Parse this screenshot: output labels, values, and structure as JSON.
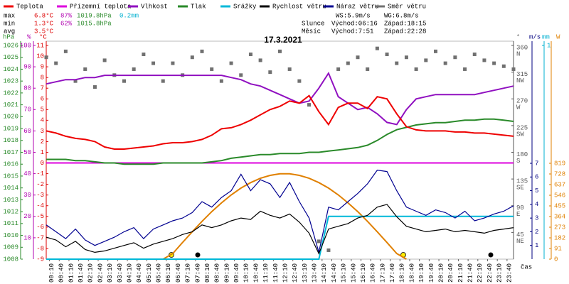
{
  "chart_data": {
    "type": "line",
    "title": "17.3.2021",
    "xlabel": "čas",
    "xlim": [
      0,
      1440
    ],
    "x": [
      0,
      30,
      60,
      90,
      120,
      150,
      180,
      210,
      240,
      270,
      300,
      330,
      360,
      390,
      420,
      450,
      480,
      510,
      540,
      570,
      600,
      630,
      660,
      690,
      720,
      750,
      780,
      810,
      840,
      870,
      900,
      930,
      960,
      990,
      1020,
      1050,
      1080,
      1110,
      1140,
      1170,
      1200,
      1230,
      1260,
      1290,
      1320,
      1350,
      1380,
      1410,
      1440
    ],
    "xticks": [
      {
        "value": 10,
        "label": "00:10"
      },
      {
        "value": 40,
        "label": "00:40"
      },
      {
        "value": 70,
        "label": "01:10"
      },
      {
        "value": 100,
        "label": "01:40"
      },
      {
        "value": 130,
        "label": "02:10"
      },
      {
        "value": 160,
        "label": "02:40"
      },
      {
        "value": 190,
        "label": "03:10"
      },
      {
        "value": 220,
        "label": "03:40"
      },
      {
        "value": 250,
        "label": "04:10"
      },
      {
        "value": 280,
        "label": "04:40"
      },
      {
        "value": 310,
        "label": "05:10"
      },
      {
        "value": 340,
        "label": "05:40"
      },
      {
        "value": 370,
        "label": "06:10"
      },
      {
        "value": 400,
        "label": "06:40"
      },
      {
        "value": 430,
        "label": "07:10"
      },
      {
        "value": 460,
        "label": "07:40"
      },
      {
        "value": 490,
        "label": "08:10"
      },
      {
        "value": 520,
        "label": "08:40"
      },
      {
        "value": 550,
        "label": "09:10"
      },
      {
        "value": 580,
        "label": "09:40"
      },
      {
        "value": 610,
        "label": "10:10"
      },
      {
        "value": 640,
        "label": "10:40"
      },
      {
        "value": 670,
        "label": "11:10"
      },
      {
        "value": 700,
        "label": "11:40"
      },
      {
        "value": 730,
        "label": "12:10"
      },
      {
        "value": 760,
        "label": "12:40"
      },
      {
        "value": 790,
        "label": "13:10"
      },
      {
        "value": 820,
        "label": "13:40"
      },
      {
        "value": 850,
        "label": "14:10"
      },
      {
        "value": 880,
        "label": "14:40"
      },
      {
        "value": 910,
        "label": "15:10"
      },
      {
        "value": 940,
        "label": "15:40"
      },
      {
        "value": 970,
        "label": "16:10"
      },
      {
        "value": 1000,
        "label": "16:40"
      },
      {
        "value": 1030,
        "label": "17:10"
      },
      {
        "value": 1060,
        "label": "17:40"
      },
      {
        "value": 1090,
        "label": "18:10"
      },
      {
        "value": 1120,
        "label": "18:40"
      },
      {
        "value": 1150,
        "label": "19:10"
      },
      {
        "value": 1180,
        "label": "19:40"
      },
      {
        "value": 1210,
        "label": "20:10"
      },
      {
        "value": 1240,
        "label": "20:40"
      },
      {
        "value": 1270,
        "label": "21:10"
      },
      {
        "value": 1300,
        "label": "21:40"
      },
      {
        "value": 1330,
        "label": "22:10"
      },
      {
        "value": 1360,
        "label": "22:40"
      },
      {
        "value": 1390,
        "label": "23:10"
      },
      {
        "value": 1420,
        "label": "23:40"
      }
    ],
    "axes": [
      {
        "unit": "hPa",
        "color": "#2a8a2a",
        "lim": [
          1008,
          1026
        ],
        "ticks": [
          1008,
          1009,
          1010,
          1011,
          1012,
          1013,
          1014,
          1015,
          1016,
          1017,
          1018,
          1019,
          1020,
          1021,
          1022,
          1023,
          1024,
          1025,
          1026
        ]
      },
      {
        "unit": "%",
        "color": "#b000b0",
        "lim": [
          0,
          100
        ],
        "ticks": [
          10,
          20,
          30,
          40,
          50,
          60,
          70,
          80,
          90,
          100
        ]
      },
      {
        "unit": "°C",
        "color": "#dd0000",
        "lim": [
          -9,
          11
        ],
        "ticks": [
          -9,
          -8,
          -7,
          -6,
          -5,
          -4,
          -3,
          -2,
          -1,
          0,
          1,
          2,
          3,
          4,
          5,
          6,
          7,
          8,
          9,
          10,
          11
        ]
      },
      {
        "unit": "°",
        "color": "#555555",
        "lim": [
          0,
          360
        ],
        "ticks": [
          360,
          315,
          270,
          225,
          180,
          135,
          90,
          45
        ],
        "compass": [
          "N",
          "NW",
          "W",
          "SW",
          "S",
          "SE",
          "E",
          "NE"
        ]
      },
      {
        "unit": "m/s",
        "color": "#000080",
        "lim": [
          0,
          7
        ],
        "ticks": [
          1,
          2,
          3,
          4,
          5,
          6,
          7
        ]
      },
      {
        "unit": "mm",
        "color": "#00b0d0",
        "lim": [
          0,
          1
        ],
        "ticks": [
          1
        ]
      },
      {
        "unit": "W",
        "color": "#e08000",
        "lim": [
          0,
          819
        ],
        "ticks": [
          0,
          91,
          182,
          273,
          364,
          455,
          546,
          637,
          728,
          819
        ]
      }
    ],
    "series": [
      {
        "name": "Teplota",
        "color": "#ee0000",
        "axis": 2,
        "values": [
          3.0,
          2.8,
          2.5,
          2.3,
          2.2,
          2.0,
          1.5,
          1.3,
          1.3,
          1.4,
          1.5,
          1.6,
          1.8,
          1.9,
          1.9,
          2.0,
          2.2,
          2.6,
          3.2,
          3.3,
          3.6,
          4.0,
          4.5,
          5.0,
          5.3,
          5.8,
          5.6,
          6.3,
          4.8,
          3.6,
          5.2,
          5.6,
          5.6,
          5.1,
          6.2,
          6.0,
          4.6,
          3.4,
          3.1,
          3.0,
          3.0,
          3.0,
          2.9,
          2.9,
          2.8,
          2.8,
          2.7,
          2.6,
          2.5
        ]
      },
      {
        "name": "Přízemní teplota",
        "color": "#dd00dd",
        "axis": 2,
        "values": [
          0,
          0,
          0,
          0,
          0,
          0,
          0,
          0,
          0,
          0,
          0,
          0,
          0,
          0,
          0,
          0,
          0,
          0,
          0,
          0,
          0,
          0,
          0,
          0,
          0,
          0,
          0,
          0,
          0,
          0,
          0,
          0,
          0,
          0,
          0,
          0,
          0,
          0,
          0,
          0,
          0,
          0,
          0,
          0,
          0,
          0,
          0,
          0,
          0
        ]
      },
      {
        "name": "Vlhkost",
        "color": "#9010c0",
        "axis": 1,
        "values": [
          82,
          83,
          84,
          84,
          85,
          85,
          86,
          86,
          86,
          86,
          86,
          86,
          86,
          86,
          86,
          86,
          86,
          86,
          86,
          85,
          84,
          82,
          81,
          79,
          77,
          75,
          73,
          74,
          80,
          87,
          76,
          73,
          70,
          71,
          68,
          64,
          63,
          70,
          75,
          76,
          77,
          77,
          77,
          77,
          77,
          78,
          79,
          80,
          81
        ]
      },
      {
        "name": "Tlak",
        "color": "#2a8a2a",
        "axis": 0,
        "values": [
          1016.4,
          1016.4,
          1016.4,
          1016.3,
          1016.3,
          1016.2,
          1016.1,
          1016.1,
          1016.0,
          1016.0,
          1016.0,
          1016.0,
          1016.1,
          1016.1,
          1016.1,
          1016.1,
          1016.1,
          1016.2,
          1016.3,
          1016.5,
          1016.6,
          1016.7,
          1016.8,
          1016.8,
          1016.9,
          1016.9,
          1016.9,
          1017.0,
          1017.0,
          1017.1,
          1017.2,
          1017.3,
          1017.4,
          1017.6,
          1018.0,
          1018.5,
          1018.9,
          1019.1,
          1019.3,
          1019.4,
          1019.5,
          1019.5,
          1019.6,
          1019.7,
          1019.7,
          1019.8,
          1019.8,
          1019.7,
          1019.6
        ]
      },
      {
        "name": "Srážky",
        "color": "#00b8d8",
        "axis": 5,
        "values": [
          0,
          0,
          0,
          0,
          0,
          0,
          0,
          0,
          0,
          0,
          0,
          0,
          0,
          0,
          0,
          0,
          0,
          0,
          0,
          0,
          0,
          0,
          0,
          0,
          0,
          0,
          0,
          0,
          0,
          0.2,
          0.2,
          0.2,
          0.2,
          0.2,
          0.2,
          0.2,
          0.2,
          0.2,
          0.2,
          0.2,
          0.2,
          0.2,
          0.2,
          0.2,
          0.2,
          0.2,
          0.2,
          0.2,
          0.2
        ]
      },
      {
        "name": "Rychlost větru",
        "color": "#000000",
        "axis": 4,
        "values": [
          1.6,
          1.4,
          0.9,
          1.3,
          0.7,
          0.5,
          0.6,
          0.8,
          1.0,
          1.2,
          0.8,
          1.1,
          1.3,
          1.5,
          1.8,
          2.0,
          2.5,
          2.3,
          2.5,
          2.8,
          3.0,
          2.9,
          3.5,
          3.2,
          3.0,
          3.3,
          2.7,
          1.9,
          0.4,
          2.2,
          2.4,
          2.6,
          3.0,
          3.2,
          3.8,
          4.0,
          3.1,
          2.4,
          2.2,
          2.0,
          2.1,
          2.2,
          2.0,
          2.1,
          2.0,
          1.9,
          2.1,
          2.2,
          2.3
        ]
      },
      {
        "name": "Náraz větru",
        "color": "#000090",
        "axis": 4,
        "values": [
          2.5,
          2.0,
          1.5,
          2.2,
          1.4,
          1.0,
          1.3,
          1.6,
          2.0,
          2.3,
          1.5,
          2.2,
          2.5,
          2.8,
          3.0,
          3.4,
          4.2,
          3.8,
          4.5,
          5.0,
          6.2,
          5.0,
          5.8,
          5.5,
          4.5,
          5.6,
          4.2,
          3.0,
          0.5,
          3.8,
          3.6,
          4.2,
          4.8,
          5.5,
          6.5,
          6.4,
          5.0,
          3.8,
          3.5,
          3.2,
          3.6,
          3.4,
          3.0,
          3.5,
          2.8,
          3.0,
          3.3,
          3.5,
          3.9
        ]
      },
      {
        "name": "Směr větru",
        "color": "#707070",
        "axis": 3,
        "type": "scatter",
        "values": [
          340,
          330,
          350,
          300,
          320,
          290,
          335,
          310,
          300,
          320,
          345,
          330,
          300,
          330,
          310,
          340,
          350,
          320,
          300,
          330,
          310,
          345,
          335,
          315,
          350,
          320,
          300,
          260,
          30,
          15,
          320,
          330,
          340,
          320,
          355,
          345,
          330,
          340,
          320,
          335,
          350,
          330,
          340,
          320,
          345,
          335,
          330,
          325,
          320
        ]
      },
      {
        "color": "#e08000",
        "axis": 6,
        "values": [
          null,
          null,
          null,
          null,
          null,
          null,
          null,
          null,
          null,
          null,
          null,
          null,
          0,
          48,
          142,
          234,
          323,
          406,
          481,
          549,
          607,
          654,
          691,
          716,
          729,
          729,
          716,
          691,
          654,
          607,
          549,
          481,
          406,
          323,
          234,
          142,
          48,
          0,
          null,
          null,
          null,
          null,
          null,
          null,
          null,
          null,
          null,
          null,
          null
        ]
      }
    ],
    "stats": {
      "rows": [
        {
          "label": "max",
          "temp": "6.8°C",
          "hum": "87%",
          "press": "1019.8hPa",
          "rain": "0.2mm"
        },
        {
          "label": "min",
          "temp": "1.3°C",
          "hum": "62%",
          "press": "1015.8hPa"
        },
        {
          "label": "avg",
          "temp": "3.5°C"
        }
      ],
      "ws": "WS:5.9m/s",
      "wg": "WG:6.8m/s",
      "sun": {
        "label": "Slunce",
        "rise": "Východ:06:16",
        "set": "Západ:18:15"
      },
      "moon": {
        "label": "Měsíc",
        "rise": "Východ:7:51",
        "set": "Západ:22:28"
      }
    }
  }
}
